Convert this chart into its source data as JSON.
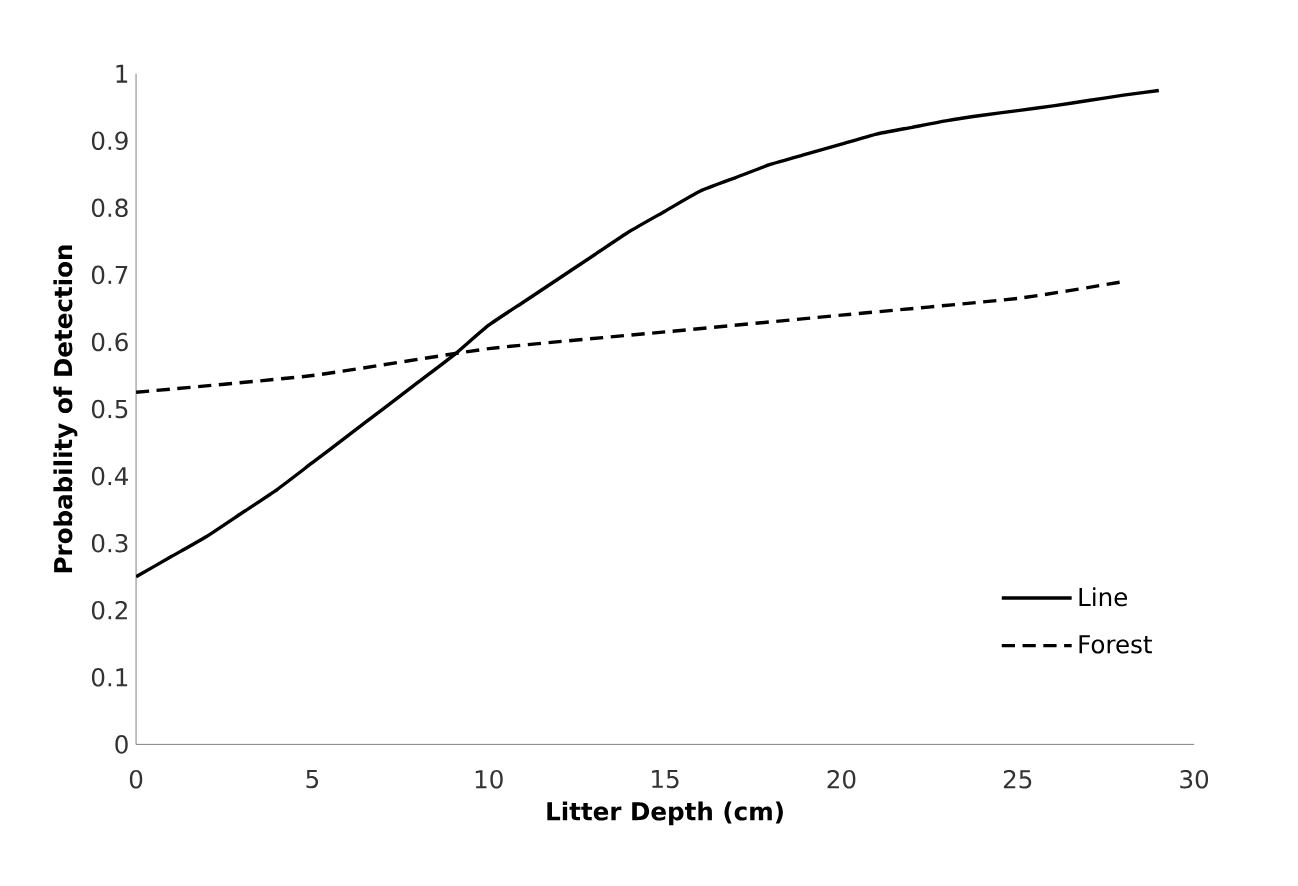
{
  "chart_data": {
    "type": "line",
    "xlabel": "Litter Depth (cm)",
    "ylabel": "Probability of Detection",
    "xlim": [
      0,
      30
    ],
    "xticks": [
      0,
      5,
      10,
      15,
      20,
      25,
      30
    ],
    "ylim": [
      0,
      1
    ],
    "yticks": [
      0,
      0.1,
      0.2,
      0.3,
      0.4,
      0.5,
      0.6,
      0.7,
      0.8,
      0.9,
      1
    ],
    "grid": false,
    "legend": "bottom right",
    "series": [
      {
        "name": "Line",
        "color": "#000000",
        "line_style": "solid",
        "x": [
          0,
          1,
          2,
          3,
          4,
          5,
          6,
          7,
          8,
          9,
          10,
          11,
          12,
          13,
          14,
          15,
          16,
          17,
          18,
          19,
          20,
          21,
          22,
          23,
          24,
          25,
          26,
          27,
          28,
          29
        ],
        "values": [
          0.25,
          0.28,
          0.31,
          0.345,
          0.38,
          0.42,
          0.46,
          0.5,
          0.54,
          0.58,
          0.625,
          0.66,
          0.695,
          0.73,
          0.765,
          0.795,
          0.825,
          0.845,
          0.865,
          0.88,
          0.895,
          0.91,
          0.92,
          0.93,
          0.938,
          0.945,
          0.952,
          0.96,
          0.968,
          0.975
        ]
      },
      {
        "name": "Forest",
        "color": "#000000",
        "line_style": "dashed",
        "x": [
          0,
          5,
          10,
          15,
          20,
          25,
          28
        ],
        "values": [
          0.525,
          0.55,
          0.59,
          0.615,
          0.64,
          0.665,
          0.69
        ]
      }
    ]
  }
}
